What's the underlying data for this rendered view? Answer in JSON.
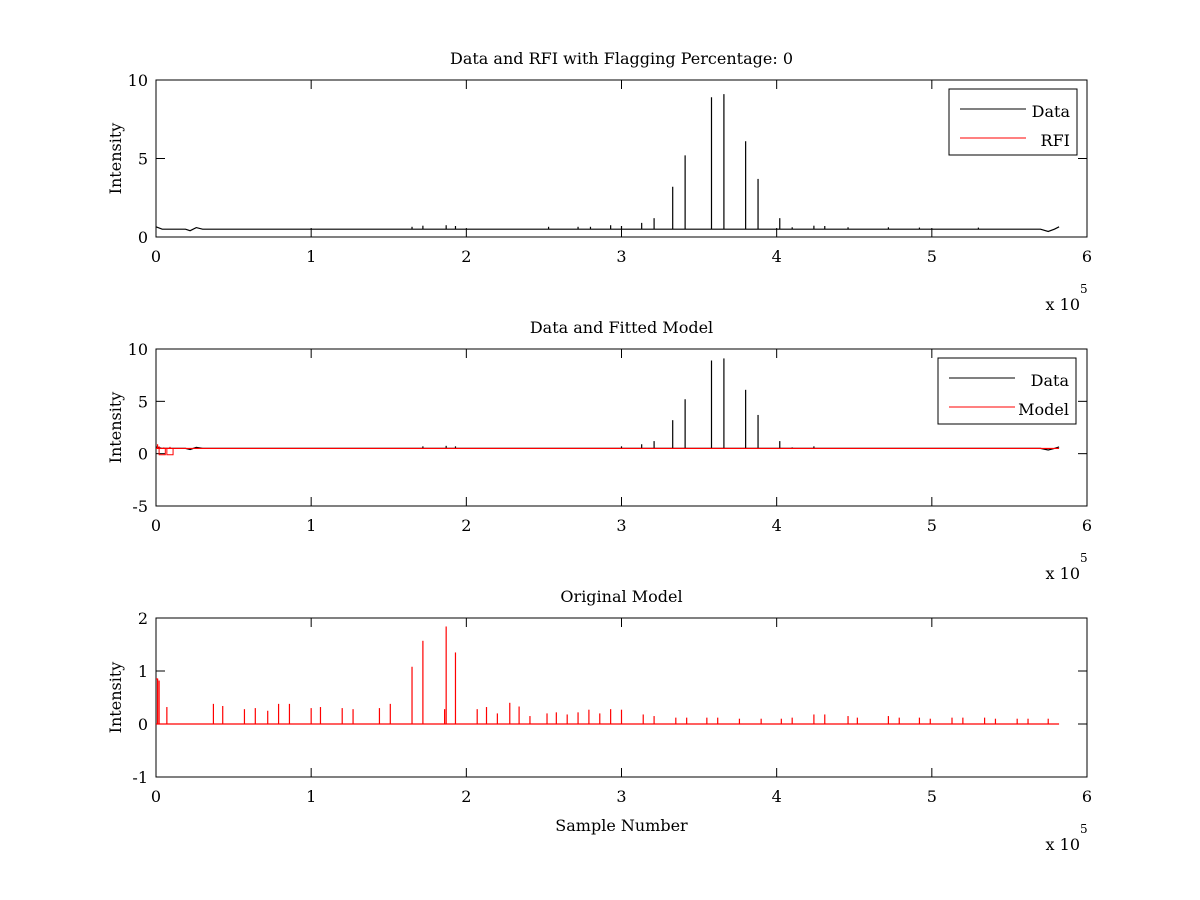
{
  "figure": {
    "background": "#ffffff"
  },
  "chart_data": [
    {
      "type": "line",
      "title": "Data and RFI with Flagging Percentage: 0",
      "xlabel": "",
      "ylabel": "Intensity",
      "xlim": [
        0,
        6
      ],
      "ylim": [
        0,
        10
      ],
      "x_ticks": [
        "0",
        "1",
        "2",
        "3",
        "4",
        "5",
        "6"
      ],
      "y_ticks": [
        "0",
        "5",
        "10"
      ],
      "x_multiplier": {
        "base": "x 10",
        "exp": "5"
      },
      "grid": false,
      "legend": {
        "position": "top-right",
        "entries": [
          "Data",
          "RFI"
        ]
      },
      "series": [
        {
          "name": "Data",
          "color": "#000000",
          "baseline": 0.5,
          "spikes": [
            [
              3.33,
              3.2
            ],
            [
              3.41,
              5.2
            ],
            [
              3.58,
              8.9
            ],
            [
              3.66,
              9.1
            ],
            [
              3.8,
              6.1
            ],
            [
              3.88,
              3.7
            ],
            [
              4.02,
              1.2
            ],
            [
              3.21,
              1.2
            ],
            [
              3.13,
              0.9
            ],
            [
              3.0,
              0.7
            ],
            [
              2.93,
              0.75
            ],
            [
              1.87,
              0.75
            ],
            [
              1.72,
              0.72
            ],
            [
              1.93,
              0.7
            ],
            [
              1.65,
              0.65
            ],
            [
              2.53,
              0.65
            ],
            [
              2.72,
              0.65
            ],
            [
              2.8,
              0.65
            ],
            [
              4.24,
              0.72
            ],
            [
              4.31,
              0.7
            ],
            [
              4.1,
              0.62
            ],
            [
              4.46,
              0.62
            ],
            [
              4.72,
              0.62
            ],
            [
              4.92,
              0.6
            ],
            [
              5.3,
              0.6
            ]
          ]
        },
        {
          "name": "RFI",
          "color": "#ff0000",
          "baseline": 0,
          "spikes": []
        }
      ]
    },
    {
      "type": "line",
      "title": "Data and Fitted Model",
      "xlabel": "",
      "ylabel": "Intensity",
      "xlim": [
        0,
        6
      ],
      "ylim": [
        -5,
        10
      ],
      "x_ticks": [
        "0",
        "1",
        "2",
        "3",
        "4",
        "5",
        "6"
      ],
      "y_ticks": [
        "-5",
        "0",
        "5",
        "10"
      ],
      "x_multiplier": {
        "base": "x 10",
        "exp": "5"
      },
      "grid": false,
      "legend": {
        "position": "top-right",
        "entries": [
          "Data",
          "Model"
        ]
      },
      "series": [
        {
          "name": "Data",
          "color": "#000000",
          "baseline": 0.5,
          "spikes": [
            [
              3.33,
              3.2
            ],
            [
              3.41,
              5.2
            ],
            [
              3.58,
              8.9
            ],
            [
              3.66,
              9.1
            ],
            [
              3.8,
              6.1
            ],
            [
              3.88,
              3.7
            ],
            [
              4.02,
              1.2
            ],
            [
              3.21,
              1.2
            ],
            [
              3.13,
              0.9
            ],
            [
              3.0,
              0.7
            ],
            [
              1.87,
              0.75
            ],
            [
              1.93,
              0.7
            ],
            [
              1.72,
              0.7
            ],
            [
              4.24,
              0.7
            ],
            [
              4.1,
              0.6
            ]
          ]
        },
        {
          "name": "Model",
          "color": "#ff0000",
          "baseline": 0.5,
          "spikes": [
            [
              0.01,
              0.9
            ],
            [
              0.02,
              0.7
            ],
            [
              0.05,
              0.6
            ],
            [
              0.09,
              0.65
            ]
          ]
        }
      ]
    },
    {
      "type": "line",
      "title": "Original Model",
      "xlabel": "Sample Number",
      "ylabel": "Intensity",
      "xlim": [
        0,
        6
      ],
      "ylim": [
        -1,
        2
      ],
      "x_ticks": [
        "0",
        "1",
        "2",
        "3",
        "4",
        "5",
        "6"
      ],
      "y_ticks": [
        "-1",
        "0",
        "1",
        "2"
      ],
      "x_multiplier": {
        "base": "x 10",
        "exp": "5"
      },
      "grid": false,
      "legend": null,
      "series": [
        {
          "name": "",
          "color": "#ff0000",
          "baseline": 0,
          "spikes": [
            [
              0.01,
              0.85
            ],
            [
              0.02,
              0.82
            ],
            [
              0.07,
              0.32
            ],
            [
              0.37,
              0.38
            ],
            [
              0.43,
              0.34
            ],
            [
              0.57,
              0.28
            ],
            [
              0.64,
              0.3
            ],
            [
              0.72,
              0.25
            ],
            [
              0.79,
              0.38
            ],
            [
              0.86,
              0.38
            ],
            [
              1.0,
              0.3
            ],
            [
              1.06,
              0.32
            ],
            [
              1.2,
              0.3
            ],
            [
              1.27,
              0.28
            ],
            [
              1.44,
              0.3
            ],
            [
              1.51,
              0.38
            ],
            [
              1.65,
              1.08
            ],
            [
              1.72,
              1.57
            ],
            [
              1.86,
              0.28
            ],
            [
              1.87,
              1.84
            ],
            [
              1.93,
              1.35
            ],
            [
              2.07,
              0.28
            ],
            [
              2.13,
              0.32
            ],
            [
              2.2,
              0.2
            ],
            [
              2.28,
              0.4
            ],
            [
              2.34,
              0.33
            ],
            [
              2.41,
              0.15
            ],
            [
              2.52,
              0.2
            ],
            [
              2.58,
              0.22
            ],
            [
              2.65,
              0.18
            ],
            [
              2.72,
              0.22
            ],
            [
              2.79,
              0.27
            ],
            [
              2.86,
              0.2
            ],
            [
              2.93,
              0.28
            ],
            [
              3.0,
              0.27
            ],
            [
              3.14,
              0.18
            ],
            [
              3.21,
              0.15
            ],
            [
              3.35,
              0.12
            ],
            [
              3.42,
              0.12
            ],
            [
              3.55,
              0.12
            ],
            [
              3.62,
              0.12
            ],
            [
              3.76,
              0.1
            ],
            [
              3.9,
              0.1
            ],
            [
              4.03,
              0.1
            ],
            [
              4.1,
              0.12
            ],
            [
              4.24,
              0.18
            ],
            [
              4.31,
              0.18
            ],
            [
              4.46,
              0.15
            ],
            [
              4.52,
              0.12
            ],
            [
              4.72,
              0.15
            ],
            [
              4.79,
              0.12
            ],
            [
              4.92,
              0.12
            ],
            [
              4.99,
              0.1
            ],
            [
              5.13,
              0.12
            ],
            [
              5.2,
              0.12
            ],
            [
              5.34,
              0.12
            ],
            [
              5.41,
              0.1
            ],
            [
              5.55,
              0.1
            ],
            [
              5.62,
              0.1
            ],
            [
              5.75,
              0.1
            ]
          ]
        }
      ]
    }
  ]
}
